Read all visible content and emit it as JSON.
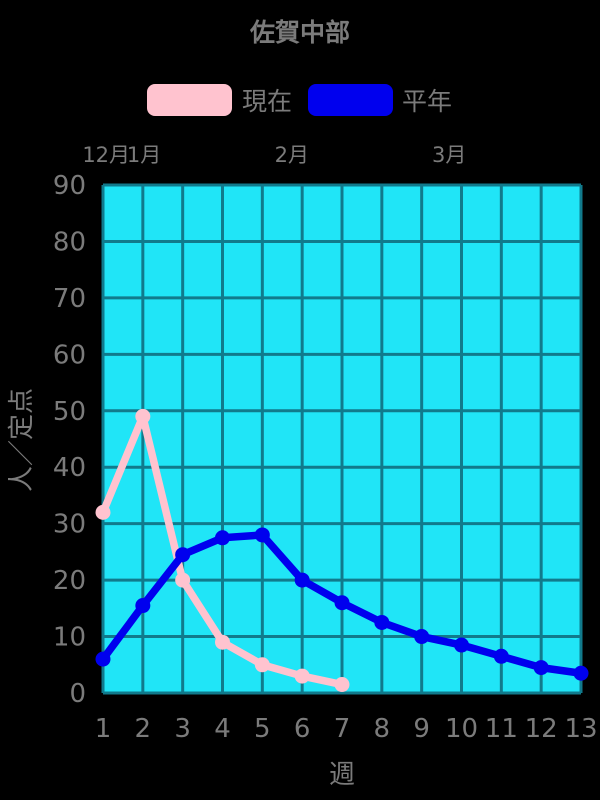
{
  "window": {
    "background": "#000000",
    "text_color": "#7b7b7b"
  },
  "chart_data": {
    "type": "line",
    "title": "佐賀中部",
    "xlabel": "週",
    "ylabel": "人／定点",
    "xlim": [
      1,
      13
    ],
    "ylim": [
      0,
      90
    ],
    "x_ticks": [
      1,
      2,
      3,
      4,
      5,
      6,
      7,
      8,
      9,
      10,
      11,
      12,
      13
    ],
    "y_ticks": [
      0,
      10,
      20,
      30,
      40,
      50,
      60,
      70,
      80,
      90
    ],
    "grid": true,
    "legend_position": "top",
    "plot_bg": "#20e5f7",
    "grid_color": "#117a8c",
    "month_labels": [
      {
        "label": "12月",
        "x_week": 1.08
      },
      {
        "label": "1月",
        "x_week": 2.03
      },
      {
        "label": "2月",
        "x_week": 5.74
      },
      {
        "label": "3月",
        "x_week": 9.69
      }
    ],
    "series": [
      {
        "name": "現在",
        "color": "#ffc3cf",
        "x": [
          1,
          2,
          3,
          4,
          5,
          6,
          7
        ],
        "values": [
          32,
          49,
          20,
          9,
          5,
          3,
          1.5
        ]
      },
      {
        "name": "平年",
        "color": "#0000ee",
        "x": [
          1,
          2,
          3,
          4,
          5,
          6,
          7,
          8,
          9,
          10,
          11,
          12,
          13
        ],
        "values": [
          6,
          15.5,
          24.5,
          27.5,
          28,
          20,
          16,
          12.5,
          10,
          8.5,
          6.5,
          4.5,
          3.5
        ]
      }
    ]
  }
}
